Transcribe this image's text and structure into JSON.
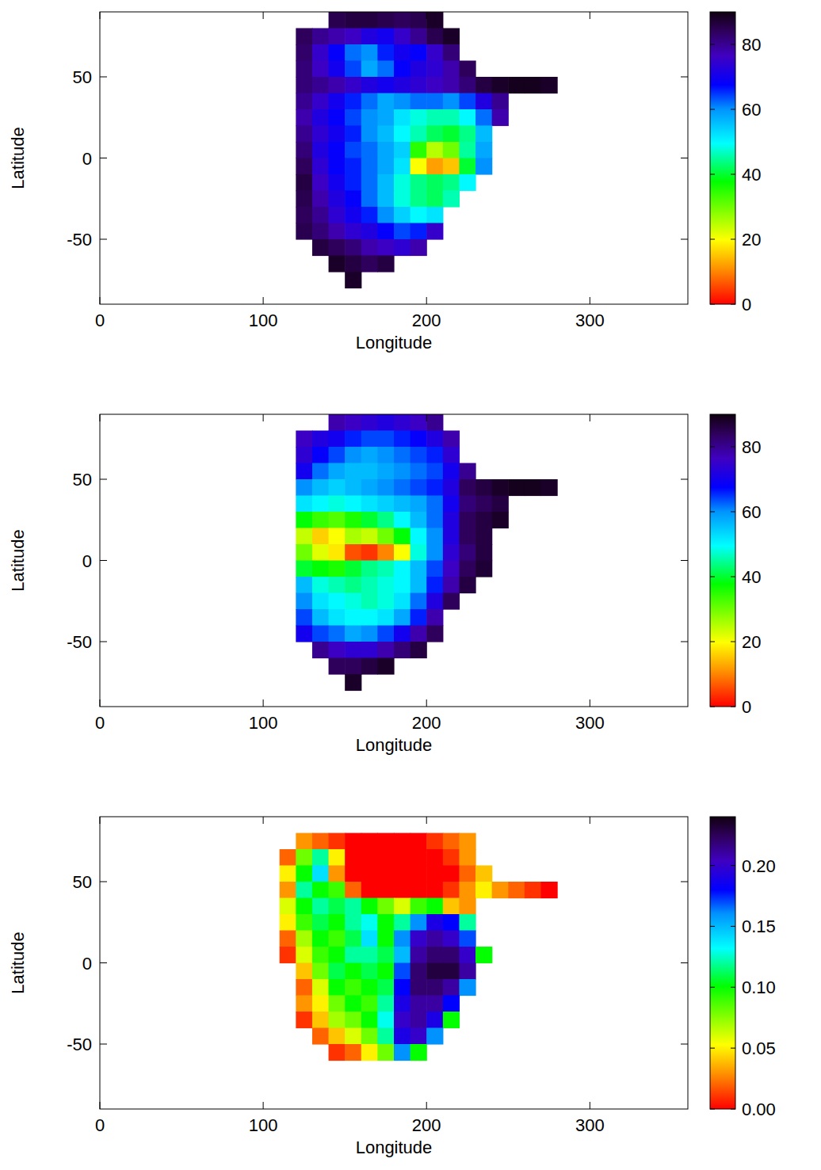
{
  "chart_data": [
    {
      "type": "heatmap",
      "xlabel": "Longitude",
      "ylabel": "Latitude",
      "xlim": [
        0,
        360
      ],
      "ylim": [
        -90,
        90
      ],
      "xticks": [
        0,
        100,
        200,
        300
      ],
      "yticks": [
        -50,
        0,
        50
      ],
      "color_range": [
        0,
        90
      ],
      "color_ticks": [
        0,
        20,
        40,
        60,
        80
      ],
      "x": [
        115,
        125,
        135,
        145,
        155,
        165,
        175,
        185,
        195,
        205,
        215,
        225,
        235,
        245,
        255,
        265,
        275
      ],
      "y": [
        85,
        75,
        65,
        55,
        45,
        35,
        25,
        15,
        5,
        -5,
        -15,
        -25,
        -35,
        -45,
        -55,
        -65,
        -75
      ],
      "values": [
        [
          null,
          null,
          null,
          85,
          86,
          86,
          85,
          84,
          85,
          88,
          null,
          null,
          null,
          null,
          null,
          null,
          null
        ],
        [
          null,
          84,
          80,
          78,
          76,
          72,
          70,
          75,
          80,
          85,
          88,
          null,
          null,
          null,
          null,
          null,
          null
        ],
        [
          null,
          83,
          75,
          68,
          62,
          60,
          66,
          70,
          68,
          75,
          82,
          null,
          null,
          null,
          null,
          null,
          null
        ],
        [
          null,
          82,
          76,
          70,
          64,
          58,
          62,
          68,
          72,
          74,
          78,
          84,
          null,
          null,
          null,
          null,
          null
        ],
        [
          null,
          82,
          80,
          78,
          75,
          72,
          70,
          72,
          74,
          76,
          78,
          82,
          86,
          88,
          89,
          89,
          88
        ],
        [
          null,
          80,
          75,
          70,
          66,
          62,
          58,
          60,
          62,
          62,
          60,
          64,
          72,
          80,
          null,
          null,
          null
        ],
        [
          null,
          78,
          72,
          68,
          64,
          60,
          58,
          52,
          48,
          46,
          46,
          50,
          62,
          78,
          null,
          null,
          null
        ],
        [
          null,
          80,
          74,
          70,
          66,
          60,
          56,
          50,
          46,
          42,
          40,
          44,
          56,
          null,
          null,
          null,
          null
        ],
        [
          null,
          82,
          72,
          68,
          64,
          62,
          58,
          54,
          35,
          25,
          30,
          45,
          58,
          null,
          null,
          null,
          null
        ],
        [
          null,
          84,
          74,
          68,
          66,
          62,
          58,
          52,
          20,
          12,
          15,
          40,
          60,
          null,
          null,
          null,
          null
        ],
        [
          null,
          86,
          76,
          70,
          66,
          62,
          56,
          48,
          44,
          42,
          44,
          50,
          null,
          null,
          null,
          null,
          null
        ],
        [
          null,
          85,
          78,
          72,
          68,
          62,
          56,
          48,
          44,
          42,
          46,
          null,
          null,
          null,
          null,
          null,
          null
        ],
        [
          null,
          84,
          80,
          74,
          70,
          66,
          60,
          54,
          50,
          52,
          null,
          null,
          null,
          null,
          null,
          null,
          null
        ],
        [
          null,
          85,
          82,
          78,
          74,
          72,
          68,
          64,
          66,
          75,
          null,
          null,
          null,
          null,
          null,
          null,
          null
        ],
        [
          null,
          null,
          86,
          84,
          82,
          78,
          76,
          74,
          78,
          null,
          null,
          null,
          null,
          null,
          null,
          null,
          null
        ],
        [
          null,
          null,
          null,
          88,
          86,
          84,
          86,
          null,
          null,
          null,
          null,
          null,
          null,
          null,
          null,
          null,
          null
        ],
        [
          null,
          null,
          null,
          null,
          88,
          null,
          null,
          null,
          null,
          null,
          null,
          null,
          null,
          null,
          null,
          null,
          null
        ]
      ]
    },
    {
      "type": "heatmap",
      "xlabel": "Longitude",
      "ylabel": "Latitude",
      "xlim": [
        0,
        360
      ],
      "ylim": [
        -90,
        90
      ],
      "xticks": [
        0,
        100,
        200,
        300
      ],
      "yticks": [
        -50,
        0,
        50
      ],
      "color_range": [
        0,
        90
      ],
      "color_ticks": [
        0,
        20,
        40,
        60,
        80
      ],
      "x": [
        115,
        125,
        135,
        145,
        155,
        165,
        175,
        185,
        195,
        205,
        215,
        225,
        235,
        245,
        255,
        265,
        275
      ],
      "y": [
        85,
        75,
        65,
        55,
        45,
        35,
        25,
        15,
        5,
        -5,
        -15,
        -25,
        -35,
        -45,
        -55,
        -65,
        -75
      ],
      "values": [
        [
          null,
          null,
          null,
          78,
          76,
          74,
          72,
          74,
          76,
          80,
          null,
          null,
          null,
          null,
          null,
          null,
          null
        ],
        [
          null,
          76,
          72,
          70,
          66,
          64,
          64,
          66,
          68,
          72,
          78,
          null,
          null,
          null,
          null,
          null,
          null
        ],
        [
          null,
          74,
          68,
          64,
          60,
          58,
          60,
          62,
          64,
          66,
          74,
          null,
          null,
          null,
          null,
          null,
          null
        ],
        [
          null,
          70,
          62,
          58,
          56,
          56,
          58,
          60,
          62,
          64,
          70,
          80,
          null,
          null,
          null,
          null,
          null
        ],
        [
          null,
          60,
          56,
          54,
          56,
          58,
          60,
          62,
          64,
          66,
          72,
          84,
          86,
          88,
          89,
          89,
          88
        ],
        [
          null,
          52,
          50,
          48,
          50,
          52,
          54,
          56,
          58,
          62,
          70,
          82,
          84,
          86,
          null,
          null,
          null
        ],
        [
          null,
          38,
          34,
          32,
          36,
          40,
          44,
          50,
          56,
          62,
          72,
          84,
          86,
          88,
          null,
          null,
          null
        ],
        [
          null,
          24,
          16,
          20,
          26,
          24,
          30,
          38,
          50,
          60,
          72,
          84,
          86,
          null,
          null,
          null,
          null
        ],
        [
          null,
          30,
          22,
          18,
          6,
          4,
          10,
          20,
          48,
          60,
          74,
          82,
          86,
          null,
          null,
          null,
          null
        ],
        [
          null,
          40,
          38,
          36,
          40,
          44,
          46,
          50,
          56,
          64,
          76,
          84,
          87,
          null,
          null,
          null,
          null
        ],
        [
          null,
          56,
          48,
          46,
          44,
          46,
          48,
          50,
          56,
          66,
          78,
          86,
          null,
          null,
          null,
          null,
          null
        ],
        [
          null,
          60,
          52,
          50,
          48,
          46,
          48,
          52,
          62,
          72,
          84,
          null,
          null,
          null,
          null,
          null,
          null
        ],
        [
          null,
          64,
          56,
          52,
          50,
          50,
          52,
          58,
          66,
          78,
          null,
          null,
          null,
          null,
          null,
          null,
          null
        ],
        [
          null,
          70,
          64,
          62,
          58,
          60,
          64,
          70,
          78,
          84,
          null,
          null,
          null,
          null,
          null,
          null,
          null
        ],
        [
          null,
          null,
          80,
          76,
          74,
          74,
          78,
          82,
          86,
          null,
          null,
          null,
          null,
          null,
          null,
          null,
          null
        ],
        [
          null,
          null,
          null,
          84,
          84,
          86,
          88,
          null,
          null,
          null,
          null,
          null,
          null,
          null,
          null,
          null,
          null
        ],
        [
          null,
          null,
          null,
          null,
          88,
          null,
          null,
          null,
          null,
          null,
          null,
          null,
          null,
          null,
          null,
          null,
          null
        ]
      ]
    },
    {
      "type": "heatmap",
      "xlabel": "Longitude",
      "ylabel": "Latitude",
      "xlim": [
        0,
        360
      ],
      "ylim": [
        -90,
        90
      ],
      "xticks": [
        0,
        100,
        200,
        300
      ],
      "yticks": [
        -50,
        0,
        50
      ],
      "color_range": [
        0,
        0.24
      ],
      "color_ticks": [
        {
          "value": 0,
          "label": "0.00"
        },
        {
          "value": 0.05,
          "label": "0.05"
        },
        {
          "value": 0.1,
          "label": "0.10"
        },
        {
          "value": 0.15,
          "label": "0.15"
        },
        {
          "value": 0.2,
          "label": "0.20"
        }
      ],
      "x": [
        115,
        125,
        135,
        145,
        155,
        165,
        175,
        185,
        195,
        205,
        215,
        225,
        235,
        245,
        255,
        265,
        275
      ],
      "y": [
        85,
        75,
        65,
        55,
        45,
        35,
        25,
        15,
        5,
        -5,
        -15,
        -25,
        -35,
        -45,
        -55,
        -65,
        -75
      ],
      "values": [
        [
          null,
          null,
          null,
          null,
          null,
          null,
          null,
          null,
          null,
          null,
          null,
          null,
          null,
          null,
          null,
          null,
          null
        ],
        [
          null,
          0.03,
          0.02,
          0.01,
          0.0,
          0.0,
          0.0,
          0.0,
          0.0,
          0.01,
          0.02,
          0.03,
          null,
          null,
          null,
          null,
          null
        ],
        [
          0.02,
          0.08,
          0.12,
          0.05,
          0.0,
          0.0,
          0.0,
          0.0,
          0.0,
          0.0,
          0.01,
          0.03,
          null,
          null,
          null,
          null,
          null
        ],
        [
          0.05,
          0.1,
          0.14,
          0.03,
          0.0,
          0.0,
          0.0,
          0.0,
          0.0,
          0.0,
          0.0,
          0.02,
          0.04,
          null,
          null,
          null,
          null
        ],
        [
          0.03,
          0.12,
          0.1,
          0.09,
          0.02,
          0.0,
          0.0,
          0.0,
          0.0,
          0.0,
          0.01,
          0.03,
          0.05,
          0.03,
          0.02,
          0.01,
          0.0
        ],
        [
          0.06,
          0.1,
          0.12,
          0.11,
          0.12,
          0.1,
          0.08,
          0.06,
          0.09,
          0.1,
          0.04,
          0.03,
          null,
          null,
          null,
          null,
          null
        ],
        [
          0.05,
          0.09,
          0.11,
          0.1,
          0.12,
          0.13,
          0.1,
          0.12,
          0.16,
          0.19,
          0.18,
          0.12,
          null,
          null,
          null,
          null,
          null
        ],
        [
          0.02,
          0.07,
          0.1,
          0.09,
          0.11,
          0.14,
          0.1,
          0.16,
          0.2,
          0.21,
          0.2,
          0.17,
          null,
          null,
          null,
          null,
          null
        ],
        [
          0.01,
          0.06,
          0.09,
          0.1,
          0.12,
          0.12,
          0.11,
          0.15,
          0.21,
          0.22,
          0.22,
          0.2,
          0.1,
          null,
          null,
          null,
          null
        ],
        [
          null,
          0.04,
          0.08,
          0.11,
          0.1,
          0.11,
          0.1,
          0.17,
          0.22,
          0.23,
          0.23,
          0.21,
          null,
          null,
          null,
          null,
          null
        ],
        [
          null,
          0.02,
          0.06,
          0.1,
          0.09,
          0.1,
          0.11,
          0.18,
          0.22,
          0.22,
          0.21,
          0.16,
          null,
          null,
          null,
          null,
          null
        ],
        [
          null,
          0.03,
          0.05,
          0.08,
          0.1,
          0.09,
          0.12,
          0.19,
          0.21,
          0.21,
          0.18,
          null,
          null,
          null,
          null,
          null,
          null
        ],
        [
          null,
          0.01,
          0.04,
          0.07,
          0.08,
          0.1,
          0.13,
          0.2,
          0.21,
          0.19,
          0.1,
          null,
          null,
          null,
          null,
          null,
          null
        ],
        [
          null,
          null,
          0.02,
          0.04,
          0.06,
          0.08,
          0.12,
          0.19,
          0.2,
          0.16,
          null,
          null,
          null,
          null,
          null,
          null,
          null
        ],
        [
          null,
          null,
          null,
          0.01,
          0.02,
          0.05,
          0.08,
          0.16,
          0.1,
          null,
          null,
          null,
          null,
          null,
          null,
          null,
          null
        ],
        [
          null,
          null,
          null,
          null,
          null,
          null,
          null,
          null,
          null,
          null,
          null,
          null,
          null,
          null,
          null,
          null,
          null
        ],
        [
          null,
          null,
          null,
          null,
          null,
          null,
          null,
          null,
          null,
          null,
          null,
          null,
          null,
          null,
          null,
          null,
          null
        ]
      ]
    }
  ]
}
